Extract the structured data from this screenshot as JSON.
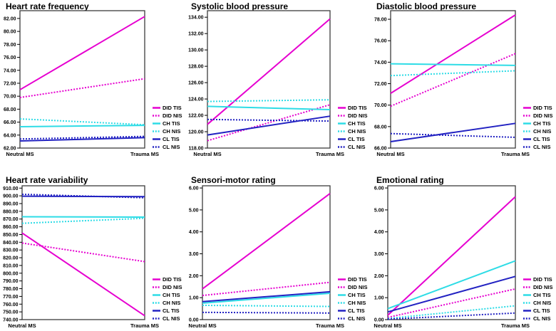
{
  "legend": {
    "items": [
      "DID TIS",
      "DID NIS",
      "CH TIS",
      "CH NIS",
      "CL TIS",
      "CL NIS"
    ]
  },
  "styles": {
    "magenta": "#E600D0",
    "cyan": "#2EDCE6",
    "blue": "#2222C2",
    "axis": "#3C3C3C",
    "text": "#000000",
    "background": "#FFFFFF"
  },
  "series_styles": [
    {
      "name": "DID TIS",
      "color_key": "magenta",
      "dash": "solid"
    },
    {
      "name": "DID NIS",
      "color_key": "magenta",
      "dash": "dotted"
    },
    {
      "name": "CH TIS",
      "color_key": "cyan",
      "dash": "solid"
    },
    {
      "name": "CH NIS",
      "color_key": "cyan",
      "dash": "dotted"
    },
    {
      "name": "CL TIS",
      "color_key": "blue",
      "dash": "solid"
    },
    {
      "name": "CL NIS",
      "color_key": "blue",
      "dash": "dotted"
    }
  ],
  "chart_data": [
    {
      "type": "line",
      "title": "Heart rate frequency",
      "x": [
        "Neutral MS",
        "Trauma MS"
      ],
      "yticks": {
        "start": 62,
        "end": 82,
        "step": 2,
        "decimals": 2
      },
      "ylim": [
        62,
        83.2
      ],
      "legend_position": "right-bottom",
      "series": [
        {
          "name": "DID TIS",
          "values": [
            71.0,
            82.3
          ]
        },
        {
          "name": "DID NIS",
          "values": [
            69.8,
            72.7
          ]
        },
        {
          "name": "CH TIS",
          "values": [
            65.3,
            65.5
          ]
        },
        {
          "name": "CH NIS",
          "values": [
            66.5,
            65.6
          ]
        },
        {
          "name": "CL TIS",
          "values": [
            63.1,
            63.6
          ]
        },
        {
          "name": "CL NIS",
          "values": [
            63.4,
            63.8
          ]
        }
      ]
    },
    {
      "type": "line",
      "title": "Systolic blood pressure",
      "x": [
        "Neutral MS",
        "Trauma MS"
      ],
      "yticks": {
        "start": 118,
        "end": 134,
        "step": 2,
        "decimals": 2
      },
      "ylim": [
        118,
        134.8
      ],
      "legend_position": "right-bottom",
      "series": [
        {
          "name": "DID TIS",
          "values": [
            120.9,
            133.8
          ]
        },
        {
          "name": "DID NIS",
          "values": [
            118.9,
            123.3
          ]
        },
        {
          "name": "CH TIS",
          "values": [
            123.1,
            122.7
          ]
        },
        {
          "name": "CH NIS",
          "values": [
            123.7,
            123.9
          ]
        },
        {
          "name": "CL TIS",
          "values": [
            119.6,
            121.9
          ]
        },
        {
          "name": "CL NIS",
          "values": [
            121.5,
            121.3
          ]
        }
      ]
    },
    {
      "type": "line",
      "title": "Diastolic blood pressure",
      "x": [
        "Neutral MS",
        "Trauma MS"
      ],
      "yticks": {
        "start": 66,
        "end": 78,
        "step": 2,
        "decimals": 2
      },
      "ylim": [
        66,
        78.8
      ],
      "legend_position": "right-bottom",
      "series": [
        {
          "name": "DID TIS",
          "values": [
            71.1,
            78.4
          ]
        },
        {
          "name": "DID NIS",
          "values": [
            69.9,
            74.8
          ]
        },
        {
          "name": "CH TIS",
          "values": [
            73.85,
            73.7
          ]
        },
        {
          "name": "CH NIS",
          "values": [
            72.75,
            73.2
          ]
        },
        {
          "name": "CL TIS",
          "values": [
            66.6,
            68.3
          ]
        },
        {
          "name": "CL NIS",
          "values": [
            67.35,
            67.0
          ]
        }
      ]
    },
    {
      "type": "line",
      "title": "Heart rate variability",
      "x": [
        "Neutral MS",
        "Trauma MS"
      ],
      "yticks": {
        "start": 740,
        "end": 910,
        "step": 10,
        "decimals": 2
      },
      "ylim": [
        740,
        913
      ],
      "legend_position": "right-bottom",
      "series": [
        {
          "name": "DID TIS",
          "values": [
            852,
            745
          ]
        },
        {
          "name": "DID NIS",
          "values": [
            839,
            815
          ]
        },
        {
          "name": "CH TIS",
          "values": [
            873,
            872.5
          ]
        },
        {
          "name": "CH NIS",
          "values": [
            864.5,
            871
          ]
        },
        {
          "name": "CL TIS",
          "values": [
            899.5,
            899
          ]
        },
        {
          "name": "CL NIS",
          "values": [
            902,
            897.5
          ]
        }
      ]
    },
    {
      "type": "line",
      "title": "Sensori-motor rating",
      "x": [
        "Neutral MS",
        "Trauma MS"
      ],
      "yticks": {
        "start": 0,
        "end": 6,
        "step": 1,
        "decimals": 2
      },
      "ylim": [
        0,
        6.1
      ],
      "legend_position": "right-bottom",
      "series": [
        {
          "name": "DID TIS",
          "values": [
            1.4,
            5.75
          ]
        },
        {
          "name": "DID NIS",
          "values": [
            1.1,
            1.7
          ]
        },
        {
          "name": "CH TIS",
          "values": [
            0.75,
            1.2
          ]
        },
        {
          "name": "CH NIS",
          "values": [
            0.65,
            0.6
          ]
        },
        {
          "name": "CL TIS",
          "values": [
            0.82,
            1.27
          ]
        },
        {
          "name": "CL NIS",
          "values": [
            0.33,
            0.3
          ]
        }
      ]
    },
    {
      "type": "line",
      "title": "Emotional rating",
      "x": [
        "Neutral MS",
        "Trauma MS"
      ],
      "yticks": {
        "start": 0,
        "end": 6,
        "step": 1,
        "decimals": 2
      },
      "ylim": [
        0,
        6.1
      ],
      "legend_position": "right-bottom",
      "series": [
        {
          "name": "DID TIS",
          "values": [
            0.2,
            5.6
          ]
        },
        {
          "name": "DID NIS",
          "values": [
            0.1,
            1.4
          ]
        },
        {
          "name": "CH TIS",
          "values": [
            0.5,
            2.68
          ]
        },
        {
          "name": "CH NIS",
          "values": [
            0.05,
            0.63
          ]
        },
        {
          "name": "CL TIS",
          "values": [
            0.35,
            1.97
          ]
        },
        {
          "name": "CL NIS",
          "values": [
            0.02,
            0.3
          ]
        }
      ]
    }
  ]
}
